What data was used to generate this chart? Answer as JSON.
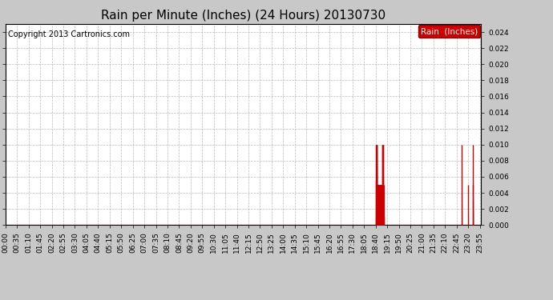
{
  "title": "Rain per Minute (Inches) (24 Hours) 20130730",
  "copyright_text": "Copyright 2013 Cartronics.com",
  "legend_label": "Rain  (Inches)",
  "legend_bg": "#cc0000",
  "legend_fg": "#ffffff",
  "line_color": "#cc0000",
  "bg_color": "#c8c8c8",
  "plot_bg_color": "#ffffff",
  "ylim": [
    0.0,
    0.025
  ],
  "yticks": [
    0.0,
    0.002,
    0.004,
    0.006,
    0.008,
    0.01,
    0.012,
    0.014,
    0.016,
    0.018,
    0.02,
    0.022,
    0.024
  ],
  "total_minutes": 1440,
  "rain_events": [
    {
      "minute": 1120,
      "value": 0.0055
    },
    {
      "minute": 1121,
      "value": 0.01
    },
    {
      "minute": 1122,
      "value": 0.01
    },
    {
      "minute": 1123,
      "value": 0.01
    },
    {
      "minute": 1124,
      "value": 0.01
    },
    {
      "minute": 1125,
      "value": 0.005
    },
    {
      "minute": 1126,
      "value": 0.005
    },
    {
      "minute": 1127,
      "value": 0.005
    },
    {
      "minute": 1128,
      "value": 0.005
    },
    {
      "minute": 1129,
      "value": 0.005
    },
    {
      "minute": 1130,
      "value": 0.005
    },
    {
      "minute": 1131,
      "value": 0.005
    },
    {
      "minute": 1132,
      "value": 0.005
    },
    {
      "minute": 1133,
      "value": 0.005
    },
    {
      "minute": 1134,
      "value": 0.005
    },
    {
      "minute": 1135,
      "value": 0.005
    },
    {
      "minute": 1136,
      "value": 0.005
    },
    {
      "minute": 1137,
      "value": 0.005
    },
    {
      "minute": 1138,
      "value": 0.005
    },
    {
      "minute": 1139,
      "value": 0.005
    },
    {
      "minute": 1140,
      "value": 0.01
    },
    {
      "minute": 1141,
      "value": 0.01
    },
    {
      "minute": 1142,
      "value": 0.01
    },
    {
      "minute": 1143,
      "value": 0.01
    },
    {
      "minute": 1144,
      "value": 0.005
    },
    {
      "minute": 1145,
      "value": 0.001
    },
    {
      "minute": 1381,
      "value": 0.01
    },
    {
      "minute": 1400,
      "value": 0.005
    },
    {
      "minute": 1414,
      "value": 0.01
    },
    {
      "minute": 1415,
      "value": 0.005
    }
  ],
  "xtick_interval_minutes": 35,
  "title_fontsize": 11,
  "axis_fontsize": 6.5,
  "copyright_fontsize": 7,
  "legend_fontsize": 7.5
}
